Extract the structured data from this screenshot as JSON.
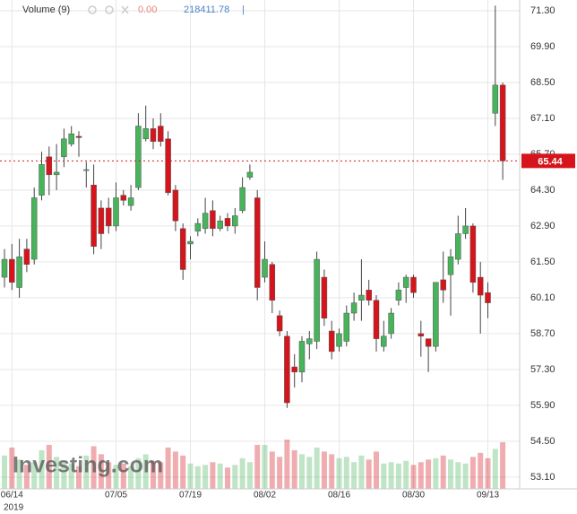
{
  "chart_data": {
    "type": "candlestick",
    "legend": {
      "label": "Volume (9)",
      "change": {
        "value": 0,
        "label": "0.00"
      },
      "ma": 218411.78,
      "separator": "|"
    },
    "watermark": "Investing.com",
    "year": "2019",
    "categories": [
      null,
      "06/14",
      null,
      null,
      null,
      null,
      null,
      null,
      null,
      null,
      null,
      null,
      null,
      null,
      null,
      "07/05",
      null,
      null,
      null,
      null,
      null,
      null,
      null,
      null,
      null,
      "07/19",
      null,
      null,
      null,
      null,
      null,
      null,
      null,
      null,
      null,
      "08/02",
      null,
      null,
      null,
      null,
      null,
      null,
      null,
      null,
      null,
      "08/16",
      null,
      null,
      null,
      null,
      null,
      null,
      null,
      null,
      null,
      "08/30",
      null,
      null,
      null,
      null,
      null,
      null,
      null,
      null,
      null,
      "09/13",
      null,
      null
    ],
    "open": [
      60.9,
      61.6,
      60.5,
      62.0,
      61.6,
      64.1,
      65.6,
      64.9,
      65.6,
      66.1,
      66.4,
      65.1,
      64.5,
      63.6,
      63.6,
      62.9,
      64.1,
      63.7,
      64.4,
      66.3,
      66.7,
      66.8,
      66.3,
      64.3,
      62.8,
      62.2,
      62.7,
      62.8,
      63.5,
      62.8,
      63.2,
      62.9,
      63.5,
      64.8,
      64.0,
      60.9,
      61.4,
      59.4,
      58.6,
      57.4,
      57.2,
      58.3,
      58.4,
      60.9,
      58.8,
      58.2,
      58.4,
      59.5,
      60.0,
      60.4,
      60.0,
      58.2,
      58.7,
      60.0,
      60.5,
      60.9,
      58.7,
      58.5,
      58.2,
      60.8,
      61.0,
      61.6,
      62.6,
      62.9,
      60.9,
      60.3,
      67.3,
      68.4
    ],
    "high": [
      62.0,
      62.2,
      62.4,
      62.4,
      64.4,
      65.8,
      66.0,
      66.1,
      66.7,
      66.8,
      66.6,
      65.4,
      65.3,
      63.9,
      64.0,
      64.6,
      64.3,
      64.5,
      67.3,
      67.6,
      67.1,
      67.3,
      66.6,
      64.5,
      63.0,
      62.5,
      63.2,
      64.0,
      63.9,
      63.3,
      63.4,
      63.6,
      64.8,
      65.3,
      64.3,
      62.3,
      61.5,
      59.6,
      58.8,
      57.9,
      58.6,
      58.8,
      61.9,
      61.2,
      59.2,
      58.9,
      59.8,
      60.3,
      61.6,
      60.8,
      60.2,
      59.2,
      59.7,
      60.7,
      61.0,
      61.0,
      59.2,
      58.5,
      60.7,
      61.9,
      62.0,
      63.3,
      63.6,
      63.0,
      61.5,
      60.7,
      71.5,
      68.5
    ],
    "low": [
      60.5,
      60.4,
      60.1,
      61.1,
      61.4,
      63.9,
      64.1,
      64.3,
      65.2,
      66.0,
      65.6,
      64.4,
      61.8,
      62.0,
      62.6,
      62.7,
      63.7,
      63.5,
      64.3,
      66.2,
      65.9,
      66.0,
      64.1,
      62.7,
      60.8,
      61.6,
      62.5,
      62.6,
      62.5,
      62.7,
      62.7,
      62.6,
      63.4,
      64.7,
      60.0,
      60.7,
      59.5,
      58.6,
      55.8,
      56.6,
      56.8,
      57.7,
      58.1,
      59.0,
      57.7,
      58.0,
      58.2,
      59.2,
      59.2,
      59.8,
      58.0,
      58.0,
      58.5,
      59.8,
      59.9,
      60.1,
      57.8,
      57.2,
      58.0,
      59.9,
      59.4,
      61.4,
      62.4,
      60.3,
      58.7,
      59.3,
      66.8,
      64.7
    ],
    "close": [
      61.6,
      60.7,
      61.7,
      61.4,
      64.0,
      65.3,
      64.9,
      65.0,
      66.3,
      66.5,
      66.35,
      65.1,
      62.1,
      62.6,
      62.9,
      64.0,
      63.9,
      64.0,
      66.8,
      66.7,
      66.2,
      66.2,
      64.2,
      63.1,
      61.2,
      62.3,
      63.0,
      63.4,
      62.8,
      63.1,
      62.9,
      63.3,
      64.4,
      65.0,
      60.5,
      61.6,
      60.0,
      58.8,
      56.0,
      57.2,
      58.4,
      58.5,
      61.6,
      59.3,
      58.0,
      58.7,
      59.5,
      59.9,
      60.2,
      60.0,
      58.5,
      58.6,
      59.5,
      60.4,
      60.9,
      60.3,
      58.6,
      58.2,
      60.7,
      60.4,
      61.7,
      62.6,
      62.9,
      60.7,
      60.2,
      59.9,
      68.4,
      65.44
    ],
    "volume": [
      250000,
      310000,
      220000,
      180000,
      200000,
      290000,
      330000,
      240000,
      210000,
      190000,
      170000,
      250000,
      320000,
      260000,
      200000,
      180000,
      190000,
      170000,
      230000,
      260000,
      210000,
      200000,
      310000,
      280000,
      250000,
      190000,
      170000,
      180000,
      200000,
      190000,
      160000,
      180000,
      230000,
      200000,
      330000,
      330000,
      280000,
      240000,
      370000,
      290000,
      260000,
      240000,
      310000,
      280000,
      260000,
      230000,
      240000,
      200000,
      250000,
      220000,
      280000,
      190000,
      200000,
      190000,
      210000,
      180000,
      200000,
      220000,
      230000,
      250000,
      220000,
      200000,
      190000,
      240000,
      270000,
      230000,
      300000,
      350000
    ],
    "up_color": "#47b35b",
    "down_color": "#d5141c",
    "ylim": [
      52.64,
      71.72
    ],
    "yticks": [
      {
        "value": 71.3,
        "label": "71.30"
      },
      {
        "value": 69.9,
        "label": "69.90"
      },
      {
        "value": 68.5,
        "label": "68.50"
      },
      {
        "value": 67.1,
        "label": "67.10"
      },
      {
        "value": 65.7,
        "label": "65.70"
      },
      {
        "value": 64.3,
        "label": "64.30"
      },
      {
        "value": 62.9,
        "label": "62.90"
      },
      {
        "value": 61.5,
        "label": "61.50"
      },
      {
        "value": 60.1,
        "label": "60.10"
      },
      {
        "value": 58.7,
        "label": "58.70"
      },
      {
        "value": 57.3,
        "label": "57.30"
      },
      {
        "value": 55.9,
        "label": "55.90"
      },
      {
        "value": 54.5,
        "label": "54.50"
      },
      {
        "value": 53.1,
        "label": "53.10"
      }
    ],
    "last_price": 65.44,
    "grid": true
  }
}
